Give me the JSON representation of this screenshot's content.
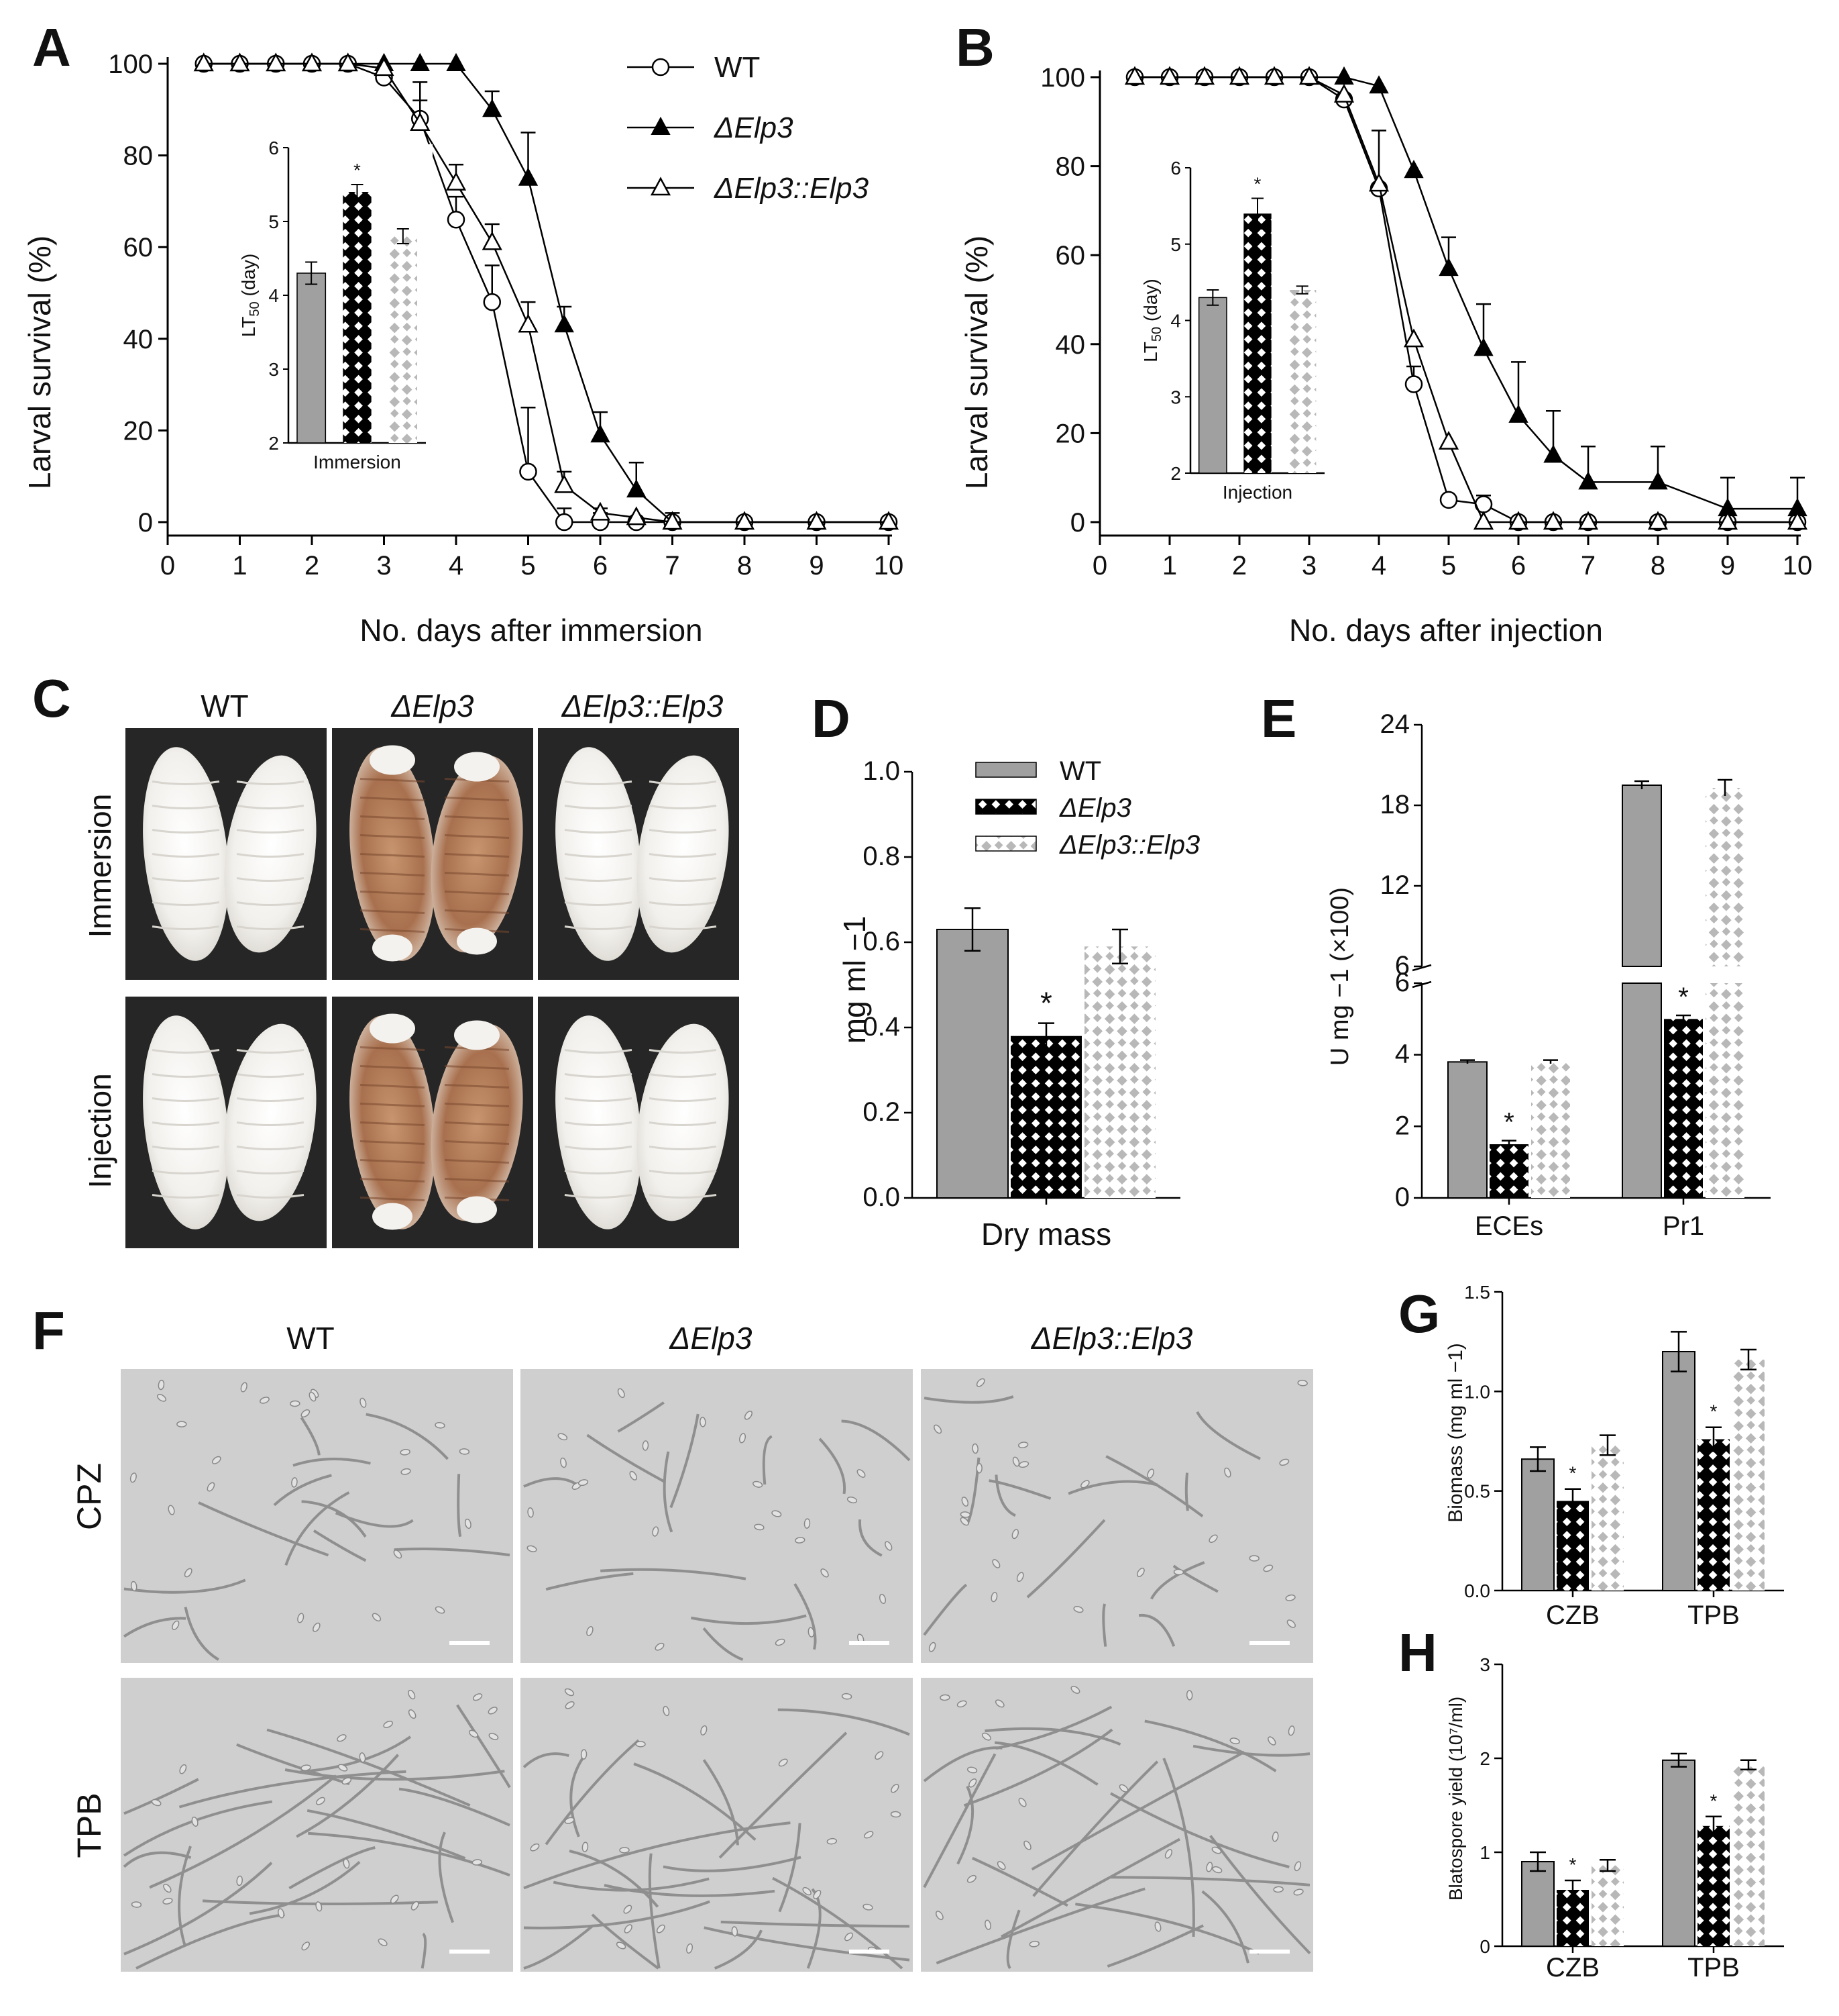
{
  "chart_data": [
    {
      "panel": "A",
      "type": "line",
      "xlabel": "No. days after immersion",
      "ylabel": "Larval survival (%)",
      "xlim": [
        0,
        10
      ],
      "ylim": [
        0,
        100
      ],
      "xticks": [
        0,
        1,
        2,
        3,
        4,
        5,
        6,
        7,
        8,
        9,
        10
      ],
      "yticks": [
        0,
        20,
        40,
        60,
        80,
        100
      ],
      "series": [
        {
          "name": "WT",
          "marker": "open-circle",
          "x": [
            0.5,
            1,
            1.5,
            2,
            2.5,
            3,
            3.5,
            4,
            4.5,
            5,
            5.5,
            6,
            6.5,
            7,
            8,
            9,
            10
          ],
          "y": [
            100,
            100,
            100,
            100,
            100,
            97,
            88,
            66,
            48,
            11,
            0,
            0,
            0,
            0,
            0,
            0,
            0
          ],
          "err": [
            0,
            0,
            0,
            0,
            0,
            0,
            4,
            5,
            8,
            14,
            3,
            2,
            0,
            0,
            0,
            0,
            0
          ]
        },
        {
          "name": "ΔElp3",
          "marker": "filled-triangle",
          "x": [
            0.5,
            1,
            1.5,
            2,
            2.5,
            3,
            3.5,
            4,
            4.5,
            5,
            5.5,
            6,
            6.5,
            7,
            8,
            9,
            10
          ],
          "y": [
            100,
            100,
            100,
            100,
            100,
            100,
            100,
            100,
            90,
            75,
            43,
            19,
            7,
            0,
            0,
            0,
            0
          ],
          "err": [
            0,
            0,
            0,
            0,
            0,
            0,
            0,
            0,
            4,
            10,
            4,
            5,
            6,
            2,
            0,
            0,
            0
          ]
        },
        {
          "name": "ΔElp3::Elp3",
          "marker": "open-triangle",
          "x": [
            0.5,
            1,
            1.5,
            2,
            2.5,
            3,
            3.5,
            4,
            4.5,
            5,
            5.5,
            6,
            6.5,
            7,
            8,
            9,
            10
          ],
          "y": [
            100,
            100,
            100,
            100,
            100,
            99,
            87,
            74,
            61,
            43,
            8,
            2,
            1,
            0,
            0,
            0,
            0
          ],
          "err": [
            0,
            0,
            0,
            0,
            0,
            0,
            9,
            4,
            4,
            5,
            3,
            1,
            0,
            0,
            0,
            0,
            0
          ]
        }
      ],
      "legend": [
        "WT",
        "ΔElp3",
        "ΔElp3::Elp3"
      ],
      "inset": {
        "type": "bar",
        "ylabel": "LT50 (day)",
        "xlabel": "Immersion",
        "ylim": [
          2,
          6
        ],
        "yticks": [
          2,
          3,
          4,
          5,
          6
        ],
        "values": [
          4.3,
          5.4,
          4.8
        ],
        "err": [
          0.15,
          0.1,
          0.1
        ],
        "annotation": "*",
        "annotated_bar": 1
      }
    },
    {
      "panel": "B",
      "type": "line",
      "xlabel": "No. days after injection",
      "ylabel": "Larval survival (%)",
      "xlim": [
        0,
        10
      ],
      "ylim": [
        0,
        100
      ],
      "xticks": [
        0,
        1,
        2,
        3,
        4,
        5,
        6,
        7,
        8,
        9,
        10
      ],
      "yticks": [
        0,
        20,
        40,
        60,
        80,
        100
      ],
      "series": [
        {
          "name": "WT",
          "marker": "open-circle",
          "x": [
            0.5,
            1,
            1.5,
            2,
            2.5,
            3,
            3.5,
            4,
            4.5,
            5,
            5.5,
            6,
            6.5,
            7,
            8,
            9,
            10
          ],
          "y": [
            100,
            100,
            100,
            100,
            100,
            100,
            95,
            75,
            31,
            5,
            4,
            0,
            0,
            0,
            0,
            0,
            0
          ],
          "err": [
            0,
            0,
            0,
            0,
            0,
            0,
            0,
            13,
            4,
            0,
            2,
            0,
            0,
            0,
            0,
            0,
            0
          ]
        },
        {
          "name": "ΔElp3",
          "marker": "filled-triangle",
          "x": [
            0.5,
            1,
            1.5,
            2,
            2.5,
            3,
            3.5,
            4,
            4.5,
            5,
            5.5,
            6,
            6.5,
            7,
            8,
            9,
            10
          ],
          "y": [
            100,
            100,
            100,
            100,
            100,
            100,
            100,
            98,
            79,
            57,
            39,
            24,
            15,
            9,
            9,
            3,
            3
          ],
          "err": [
            0,
            0,
            0,
            0,
            0,
            0,
            0,
            0,
            0,
            7,
            10,
            12,
            10,
            8,
            8,
            7,
            7
          ]
        },
        {
          "name": "ΔElp3::Elp3",
          "marker": "open-triangle",
          "x": [
            0.5,
            1,
            1.5,
            2,
            2.5,
            3,
            3.5,
            4,
            4.5,
            5,
            5.5,
            6,
            6.5,
            7,
            8,
            9,
            10
          ],
          "y": [
            100,
            100,
            100,
            100,
            100,
            100,
            96,
            76,
            41,
            18,
            0,
            0,
            0,
            0,
            0,
            0,
            0
          ],
          "err": [
            0,
            0,
            0,
            0,
            0,
            0,
            0,
            0,
            0,
            0,
            0,
            0,
            0,
            0,
            0,
            0,
            0
          ]
        }
      ],
      "inset": {
        "type": "bar",
        "ylabel": "LT50 (day)",
        "xlabel": "Injection",
        "ylim": [
          2,
          6
        ],
        "yticks": [
          2,
          3,
          4,
          5,
          6
        ],
        "values": [
          4.3,
          5.4,
          4.4
        ],
        "err": [
          0.1,
          0.2,
          0.05
        ],
        "annotation": "*",
        "annotated_bar": 1
      }
    },
    {
      "panel": "D",
      "type": "bar",
      "categories": [
        "Dry mass"
      ],
      "ylabel": "mg ml −1",
      "ylim": [
        0,
        1.0
      ],
      "yticks": [
        "0.0",
        "0.2",
        "0.4",
        "0.6",
        "0.8",
        "1.0"
      ],
      "series": [
        {
          "name": "WT",
          "values": [
            0.63
          ],
          "err": [
            0.05
          ]
        },
        {
          "name": "ΔElp3",
          "values": [
            0.38
          ],
          "err": [
            0.03
          ]
        },
        {
          "name": "ΔElp3::Elp3",
          "values": [
            0.59
          ],
          "err": [
            0.04
          ]
        }
      ],
      "annotation": "*",
      "legend": [
        "WT",
        "ΔElp3",
        "ΔElp3::Elp3"
      ]
    },
    {
      "panel": "E",
      "type": "bar",
      "categories": [
        "ECEs",
        "Pr1"
      ],
      "ylabel": "U mg −1 (×100)",
      "axis_break": {
        "lower": [
          0,
          6
        ],
        "upper": [
          6,
          24
        ]
      },
      "yticks_lower": [
        "0",
        "2",
        "4",
        "6"
      ],
      "yticks_upper": [
        "6",
        "12",
        "18",
        "24"
      ],
      "series": [
        {
          "name": "WT",
          "values": [
            3.8,
            19.5
          ],
          "err": [
            0.05,
            0.3
          ]
        },
        {
          "name": "ΔElp3",
          "values": [
            1.5,
            5.0
          ],
          "err": [
            0.1,
            0.1
          ]
        },
        {
          "name": "ΔElp3::Elp3",
          "values": [
            3.8,
            19.3
          ],
          "err": [
            0.05,
            0.6
          ]
        }
      ],
      "annotation": "*"
    },
    {
      "panel": "G",
      "type": "bar",
      "categories": [
        "CZB",
        "TPB"
      ],
      "ylabel": "Biomass (mg ml −1)",
      "ylim": [
        0,
        1.5
      ],
      "yticks": [
        "0.0",
        "0.5",
        "1.0",
        "1.5"
      ],
      "series": [
        {
          "name": "WT",
          "values": [
            0.66,
            1.2
          ],
          "err": [
            0.06,
            0.1
          ]
        },
        {
          "name": "ΔElp3",
          "values": [
            0.45,
            0.76
          ],
          "err": [
            0.06,
            0.06
          ]
        },
        {
          "name": "ΔElp3::Elp3",
          "values": [
            0.73,
            1.16
          ],
          "err": [
            0.05,
            0.05
          ]
        }
      ],
      "annotation": "*"
    },
    {
      "panel": "H",
      "type": "bar",
      "categories": [
        "CZB",
        "TPB"
      ],
      "ylabel": "Blatospore yield (10⁷/ml)",
      "ylim": [
        0,
        3
      ],
      "yticks": [
        "0",
        "1",
        "2",
        "3"
      ],
      "series": [
        {
          "name": "WT",
          "values": [
            0.9,
            1.98
          ],
          "err": [
            0.1,
            0.07
          ]
        },
        {
          "name": "ΔElp3",
          "values": [
            0.6,
            1.28
          ],
          "err": [
            0.1,
            0.1
          ]
        },
        {
          "name": "ΔElp3::Elp3",
          "values": [
            0.86,
            1.93
          ],
          "err": [
            0.06,
            0.05
          ]
        }
      ],
      "annotation": "*"
    }
  ],
  "panel_c": {
    "label": "C",
    "columns": [
      "WT",
      "ΔElp3",
      "ΔElp3::Elp3"
    ],
    "rows": [
      "Immersion",
      "Injection"
    ]
  },
  "panel_f": {
    "label": "F",
    "columns": [
      "WT",
      "ΔElp3",
      "ΔElp3::Elp3"
    ],
    "rows": [
      "CPZ",
      "TPB"
    ]
  }
}
